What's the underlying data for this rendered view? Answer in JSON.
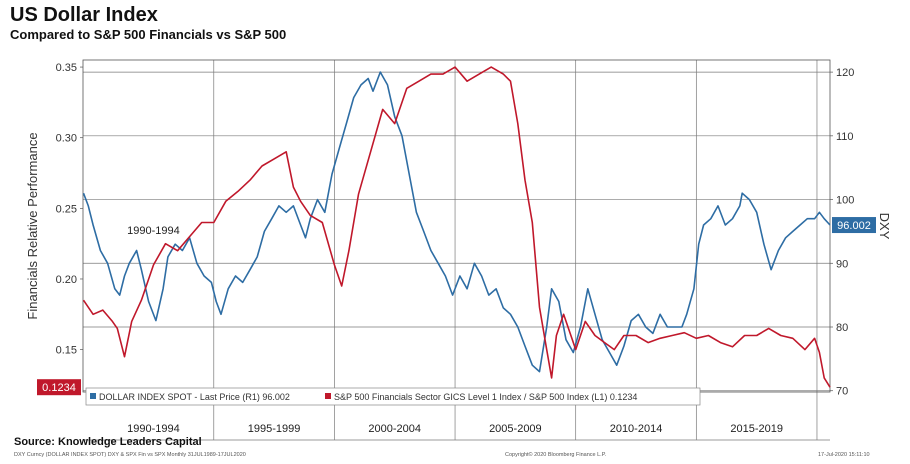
{
  "title": "US Dollar Index",
  "subtitle": "Compared to S&P 500 Financials vs S&P 500",
  "source": "Source: Knowledge Leaders Capital",
  "footer_left": "DXY Curncy (DOLLAR INDEX SPOT) DXY & SPX Fin vs SPX  Monthly 31JUL1989-17JUL2020",
  "footer_center": "Copyright© 2020 Bloomberg Finance L.P.",
  "footer_right": "17-Jul-2020  15:11:10",
  "chart_data": {
    "type": "line",
    "left_axis": {
      "label": "Financials Relative Performance",
      "range": [
        0.12,
        0.355
      ],
      "ticks": [
        "0.15",
        "0.20",
        "0.25",
        "0.30",
        "0.35"
      ],
      "tick_values": [
        0.15,
        0.2,
        0.25,
        0.3,
        0.35
      ]
    },
    "right_axis": {
      "label": "DXY",
      "range": [
        69.8,
        121.9
      ],
      "ticks": [
        "70",
        "80",
        "90",
        "100",
        "110",
        "120"
      ],
      "tick_values": [
        70,
        80,
        90,
        100,
        110,
        120
      ]
    },
    "x_range": [
      1989.58,
      2020.54
    ],
    "period_labels": [
      "1990-1994",
      "1995-1999",
      "2000-2004",
      "2005-2009",
      "2010-2014",
      "2015-2019"
    ],
    "period_label_x": [
      1992.5,
      1997.5,
      2002.5,
      2007.5,
      2012.5,
      2017.5
    ],
    "series": [
      {
        "name": "DOLLAR INDEX SPOT - Last Price (R1) 96.002",
        "axis": "right",
        "color": "#2e6da4",
        "last_value_label": "96.002",
        "x": [
          1989.6,
          1989.8,
          1990.0,
          1990.3,
          1990.6,
          1990.9,
          1991.1,
          1991.3,
          1991.5,
          1991.8,
          1992.0,
          1992.3,
          1992.6,
          1992.9,
          1993.1,
          1993.4,
          1993.7,
          1994.0,
          1994.3,
          1994.6,
          1994.9,
          1995.1,
          1995.3,
          1995.6,
          1995.9,
          1996.2,
          1996.5,
          1996.8,
          1997.1,
          1997.4,
          1997.7,
          1998.0,
          1998.3,
          1998.6,
          1998.8,
          1999.0,
          1999.3,
          1999.6,
          1999.9,
          2000.2,
          2000.5,
          2000.8,
          2001.1,
          2001.4,
          2001.6,
          2001.9,
          2002.2,
          2002.5,
          2002.8,
          2003.1,
          2003.4,
          2003.7,
          2004.0,
          2004.3,
          2004.6,
          2004.9,
          2005.2,
          2005.5,
          2005.8,
          2006.1,
          2006.4,
          2006.7,
          2007.0,
          2007.3,
          2007.6,
          2007.9,
          2008.2,
          2008.5,
          2008.8,
          2009.0,
          2009.3,
          2009.6,
          2009.9,
          2010.2,
          2010.5,
          2010.8,
          2011.1,
          2011.4,
          2011.7,
          2012.0,
          2012.3,
          2012.6,
          2012.9,
          2013.2,
          2013.5,
          2013.8,
          2014.1,
          2014.4,
          2014.6,
          2014.9,
          2015.1,
          2015.3,
          2015.6,
          2015.9,
          2016.2,
          2016.5,
          2016.8,
          2016.9,
          2017.2,
          2017.5,
          2017.8,
          2018.1,
          2018.4,
          2018.7,
          2019.0,
          2019.3,
          2019.6,
          2019.9,
          2020.1,
          2020.3,
          2020.54
        ],
        "y": [
          101,
          99,
          96,
          92,
          90,
          86,
          85,
          88,
          90,
          92,
          89,
          84,
          81,
          86,
          91,
          93,
          92,
          94,
          90,
          88,
          87,
          84,
          82,
          86,
          88,
          87,
          89,
          91,
          95,
          97,
          99,
          98,
          99,
          96,
          94,
          97,
          100,
          98,
          104,
          108,
          112,
          116,
          118,
          119,
          117,
          120,
          118,
          113,
          110,
          104,
          98,
          95,
          92,
          90,
          88,
          85,
          88,
          86,
          90,
          88,
          85,
          86,
          83,
          82,
          80,
          77,
          74,
          73,
          80,
          86,
          84,
          78,
          76,
          80,
          86,
          82,
          78,
          76,
          74,
          77,
          81,
          82,
          80,
          79,
          82,
          80,
          80,
          80,
          82,
          86,
          93,
          96,
          97,
          99,
          96,
          97,
          99,
          101,
          100,
          98,
          93,
          89,
          92,
          94,
          95,
          96,
          97,
          97,
          98,
          97,
          96
        ]
      },
      {
        "name": "S&P 500 Financials Sector GICS Level 1 Index / S&P 500 Index (L1) 0.1234",
        "axis": "left",
        "color": "#c0182b",
        "last_value_label": "0.1234",
        "x": [
          1989.6,
          1990.0,
          1990.4,
          1990.8,
          1991.0,
          1991.3,
          1991.6,
          1992.0,
          1992.5,
          1993.0,
          1993.5,
          1994.0,
          1994.5,
          1995.0,
          1995.5,
          1996.0,
          1996.5,
          1997.0,
          1997.5,
          1998.0,
          1998.3,
          1998.6,
          1999.0,
          1999.5,
          2000.0,
          2000.3,
          2000.6,
          2001.0,
          2001.5,
          2002.0,
          2002.5,
          2003.0,
          2003.5,
          2004.0,
          2004.5,
          2005.0,
          2005.5,
          2006.0,
          2006.5,
          2007.0,
          2007.3,
          2007.6,
          2007.9,
          2008.2,
          2008.5,
          2008.8,
          2009.0,
          2009.2,
          2009.5,
          2009.8,
          2010.0,
          2010.4,
          2010.8,
          2011.2,
          2011.6,
          2012.0,
          2012.5,
          2013.0,
          2013.5,
          2014.0,
          2014.5,
          2015.0,
          2015.5,
          2016.0,
          2016.5,
          2017.0,
          2017.5,
          2018.0,
          2018.5,
          2019.0,
          2019.5,
          2019.9,
          2020.1,
          2020.3,
          2020.54
        ],
        "y": [
          0.185,
          0.175,
          0.178,
          0.17,
          0.165,
          0.145,
          0.17,
          0.185,
          0.21,
          0.225,
          0.22,
          0.23,
          0.24,
          0.24,
          0.255,
          0.262,
          0.27,
          0.28,
          0.285,
          0.29,
          0.265,
          0.255,
          0.245,
          0.24,
          0.21,
          0.195,
          0.22,
          0.26,
          0.29,
          0.32,
          0.31,
          0.335,
          0.34,
          0.345,
          0.345,
          0.35,
          0.34,
          0.345,
          0.35,
          0.345,
          0.34,
          0.31,
          0.27,
          0.24,
          0.18,
          0.15,
          0.13,
          0.16,
          0.175,
          0.16,
          0.15,
          0.17,
          0.16,
          0.155,
          0.15,
          0.16,
          0.16,
          0.155,
          0.158,
          0.16,
          0.162,
          0.158,
          0.16,
          0.155,
          0.152,
          0.16,
          0.16,
          0.165,
          0.16,
          0.158,
          0.15,
          0.158,
          0.148,
          0.13,
          0.1234
        ]
      }
    ]
  }
}
